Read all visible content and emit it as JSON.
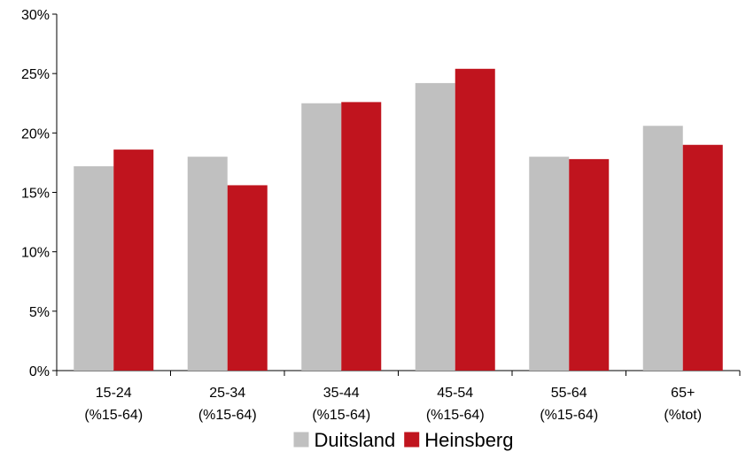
{
  "chart_data": {
    "type": "bar",
    "categories": [
      [
        "15-24",
        "(%15-64)"
      ],
      [
        "25-34",
        "(%15-64)"
      ],
      [
        "35-44",
        "(%15-64)"
      ],
      [
        "45-54",
        "(%15-64)"
      ],
      [
        "55-64",
        "(%15-64)"
      ],
      [
        "65+",
        "(%tot)"
      ]
    ],
    "series": [
      {
        "name": "Duitsland",
        "color": "#c0c0c0",
        "values": [
          17.2,
          18.0,
          22.5,
          24.2,
          18.0,
          20.6
        ]
      },
      {
        "name": "Heinsberg",
        "color": "#c0141e",
        "values": [
          18.6,
          15.6,
          22.6,
          25.4,
          17.8,
          19.0
        ]
      }
    ],
    "y_ticks": [
      "0%",
      "5%",
      "10%",
      "15%",
      "20%",
      "25%",
      "30%"
    ],
    "ylim": [
      0,
      30
    ],
    "title": "",
    "xlabel": "",
    "ylabel": "",
    "grid": false,
    "legend_position": "bottom-center"
  }
}
